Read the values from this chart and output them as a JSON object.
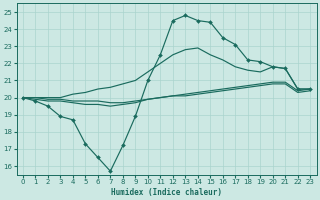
{
  "xlabel": "Humidex (Indice chaleur)",
  "background_color": "#cce8e3",
  "grid_color": "#aad4ce",
  "line_color": "#1a6b5e",
  "xlim": [
    -0.5,
    23.5
  ],
  "ylim": [
    15.5,
    25.5
  ],
  "xticks": [
    0,
    1,
    2,
    3,
    4,
    5,
    6,
    7,
    8,
    9,
    10,
    11,
    12,
    13,
    14,
    15,
    16,
    17,
    18,
    19,
    20,
    21,
    22,
    23
  ],
  "yticks": [
    16,
    17,
    18,
    19,
    20,
    21,
    22,
    23,
    24,
    25
  ],
  "line_flat1_x": [
    0,
    1,
    2,
    3,
    4,
    5,
    6,
    7,
    8,
    9,
    10,
    11,
    12,
    13,
    14,
    15,
    16,
    17,
    18,
    19,
    20,
    21,
    22,
    23
  ],
  "line_flat1_y": [
    20.0,
    19.9,
    19.8,
    19.8,
    19.7,
    19.6,
    19.6,
    19.5,
    19.6,
    19.7,
    19.9,
    20.0,
    20.1,
    20.2,
    20.3,
    20.4,
    20.5,
    20.6,
    20.7,
    20.8,
    20.9,
    20.9,
    20.4,
    20.5
  ],
  "line_flat2_x": [
    0,
    1,
    2,
    3,
    4,
    5,
    6,
    7,
    8,
    9,
    10,
    11,
    12,
    13,
    14,
    15,
    16,
    17,
    18,
    19,
    20,
    21,
    22,
    23
  ],
  "line_flat2_y": [
    20.0,
    20.0,
    19.9,
    19.9,
    19.8,
    19.8,
    19.8,
    19.7,
    19.7,
    19.8,
    19.9,
    20.0,
    20.1,
    20.1,
    20.2,
    20.3,
    20.4,
    20.5,
    20.6,
    20.7,
    20.8,
    20.8,
    20.3,
    20.4
  ],
  "line_up_x": [
    0,
    2,
    3,
    4,
    5,
    6,
    7,
    8,
    9,
    10,
    11,
    12,
    13,
    14,
    15,
    16,
    17,
    18,
    19,
    20,
    21,
    22,
    23
  ],
  "line_up_y": [
    20.0,
    20.0,
    20.0,
    20.2,
    20.3,
    20.5,
    20.6,
    20.8,
    21.0,
    21.5,
    22.0,
    22.5,
    22.8,
    22.9,
    22.5,
    22.2,
    21.8,
    21.6,
    21.5,
    21.8,
    21.7,
    20.5,
    20.5
  ],
  "line_peak_x": [
    0,
    1,
    2,
    3,
    4,
    5,
    6,
    7,
    8,
    9,
    10,
    11,
    12,
    13,
    14,
    15,
    16,
    17,
    18,
    19,
    20,
    21,
    22,
    23
  ],
  "line_peak_y": [
    20.0,
    19.8,
    19.5,
    18.9,
    18.7,
    17.3,
    16.5,
    15.7,
    17.2,
    18.9,
    21.0,
    22.5,
    24.5,
    24.8,
    24.5,
    24.4,
    23.5,
    23.1,
    22.2,
    22.1,
    21.8,
    21.7,
    20.5,
    20.5
  ]
}
